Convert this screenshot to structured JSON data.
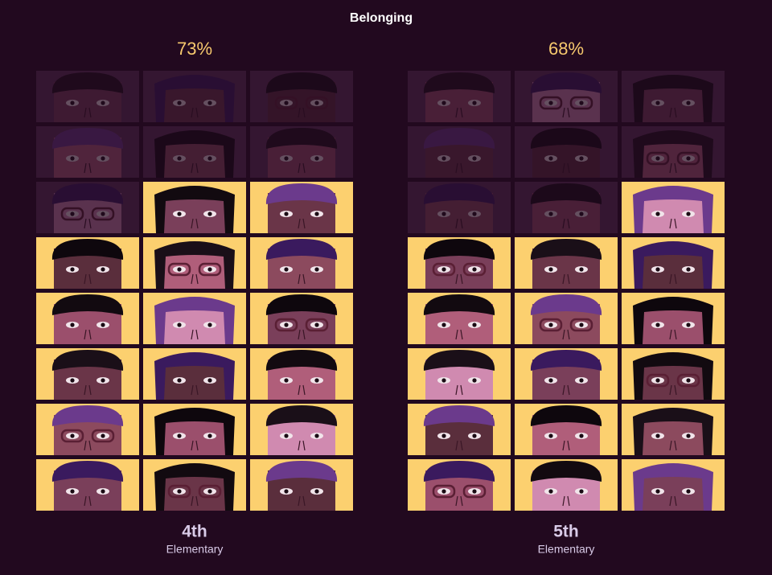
{
  "title": "Belonging",
  "chart_data": [
    {
      "type": "pictogram",
      "values": [
        73
      ],
      "value_labels": [
        "73%"
      ],
      "title": "4th",
      "subtitle": "Elementary",
      "tiles": [
        0,
        0,
        0,
        0,
        0,
        0,
        0,
        1,
        1,
        1,
        1,
        1,
        1,
        1,
        1,
        1,
        1,
        1,
        1,
        1,
        1,
        1,
        1,
        1
      ],
      "color": "#fcd06f"
    },
    {
      "type": "pictogram",
      "values": [
        68
      ],
      "value_labels": [
        "68%"
      ],
      "title": "5th",
      "subtitle": "Elementary",
      "tiles": [
        0,
        0,
        0,
        0,
        0,
        0,
        0,
        0,
        1,
        1,
        1,
        1,
        1,
        1,
        1,
        1,
        1,
        1,
        1,
        1,
        1,
        1,
        1,
        1
      ],
      "color": "#fcd06f"
    }
  ]
}
